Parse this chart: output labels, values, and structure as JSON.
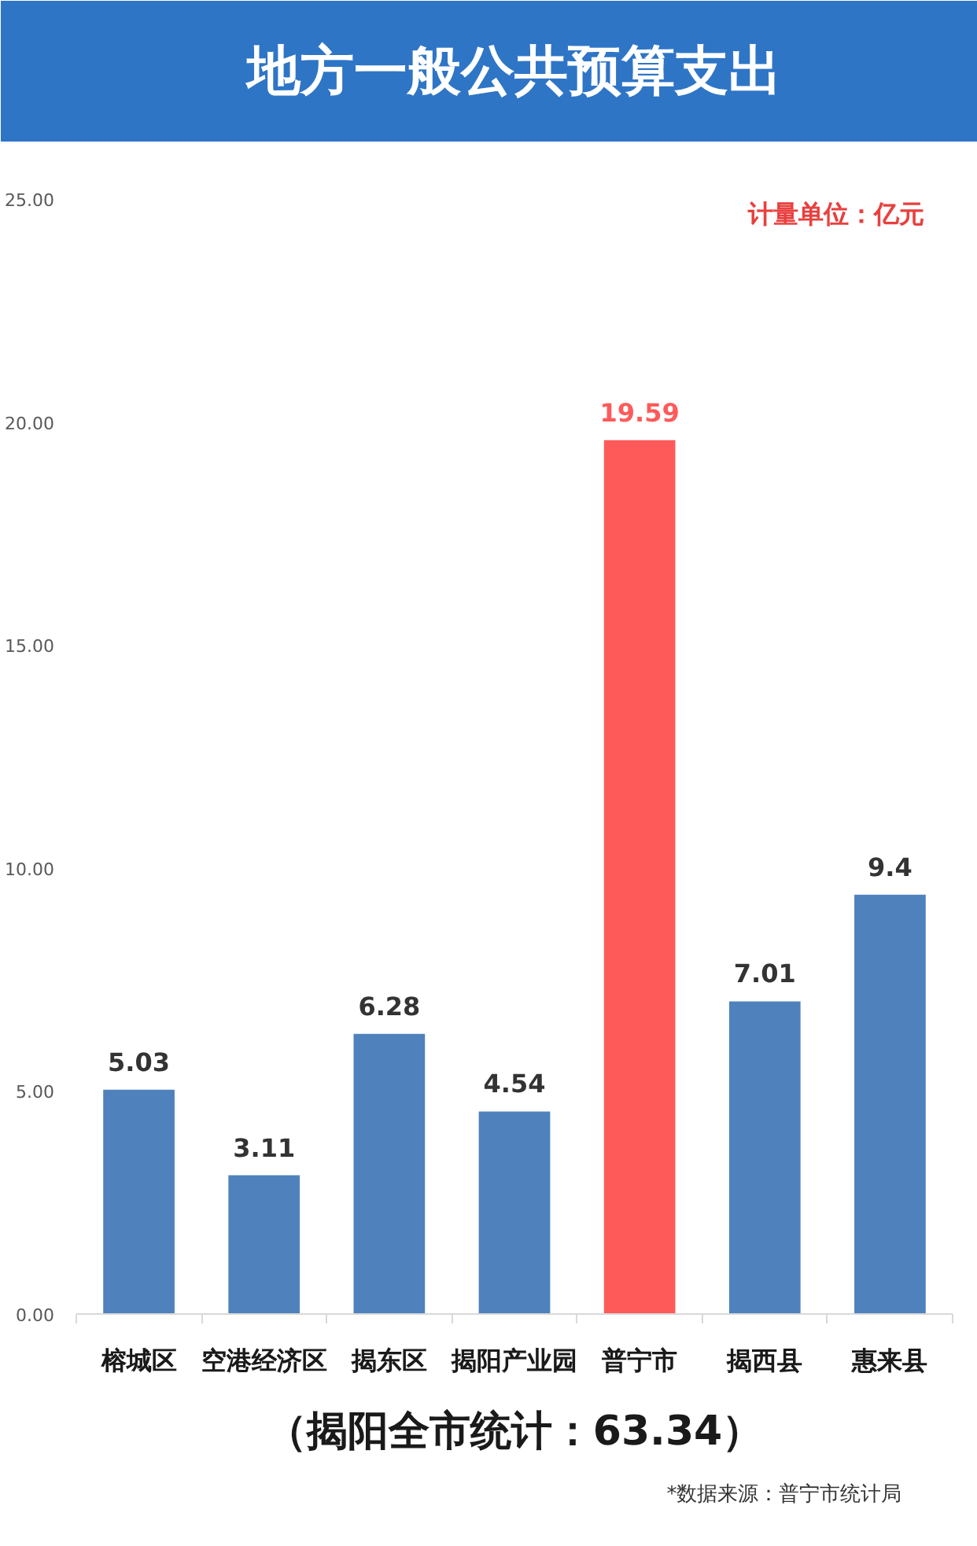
{
  "chart_data": {
    "type": "bar",
    "title": "地方一般公共预算支出",
    "categories": [
      "榕城区",
      "空港经济区",
      "揭东区",
      "揭阳产业园",
      "普宁市",
      "揭西县",
      "惠来县"
    ],
    "values": [
      5.03,
      3.11,
      6.28,
      4.54,
      19.59,
      7.01,
      9.4
    ],
    "colors": [
      "#4f81bd",
      "#4f81bd",
      "#4f81bd",
      "#4f81bd",
      "#ff5a5a",
      "#4f81bd",
      "#4f81bd"
    ],
    "ylim": [
      0,
      25
    ],
    "yticks": [
      {
        "value": 0,
        "label": "0.00"
      },
      {
        "value": 5,
        "label": "5.00"
      },
      {
        "value": 10,
        "label": "10.00"
      },
      {
        "value": 15,
        "label": "15.00"
      },
      {
        "value": 20,
        "label": "20.00"
      },
      {
        "value": 25,
        "label": "25.00"
      }
    ],
    "data_labels": true,
    "annotations": [
      "计量单位：亿元",
      "（揭阳全市统计：63.34）",
      "*数据来源：普宁市统计局"
    ]
  }
}
